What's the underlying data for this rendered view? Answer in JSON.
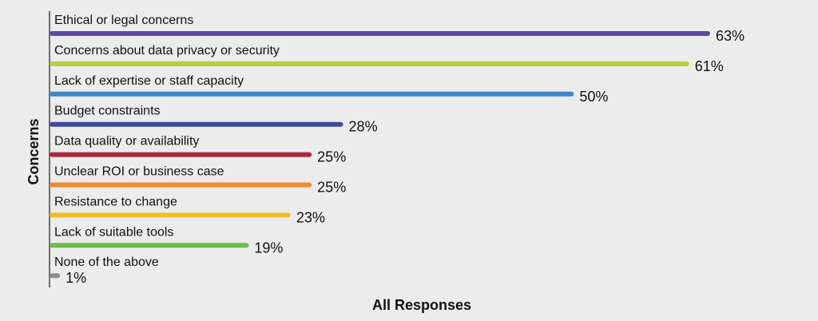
{
  "chart_data": {
    "type": "bar",
    "orientation": "horizontal",
    "xlabel": "All Responses",
    "ylabel": "Concerns",
    "xlim": [
      0,
      63
    ],
    "grid": false,
    "value_suffix": "%",
    "categories": [
      "Ethical or legal concerns",
      "Concerns about data privacy or security",
      "Lack of expertise or staff capacity",
      "Budget constraints",
      "Data quality or availability",
      "Unclear ROI or business case",
      "Resistance to change",
      "Lack of suitable tools",
      "None of the above"
    ],
    "values": [
      63,
      61,
      50,
      28,
      25,
      25,
      23,
      19,
      1
    ],
    "value_labels": [
      "63%",
      "61%",
      "50%",
      "28%",
      "25%",
      "25%",
      "23%",
      "19%",
      "1%"
    ],
    "colors": [
      "#5e4aa0",
      "#b5cf38",
      "#3e88c8",
      "#3a4b9c",
      "#a8283f",
      "#ee8a2e",
      "#f0bd2a",
      "#6cbd45",
      "#8e8e8e"
    ]
  }
}
